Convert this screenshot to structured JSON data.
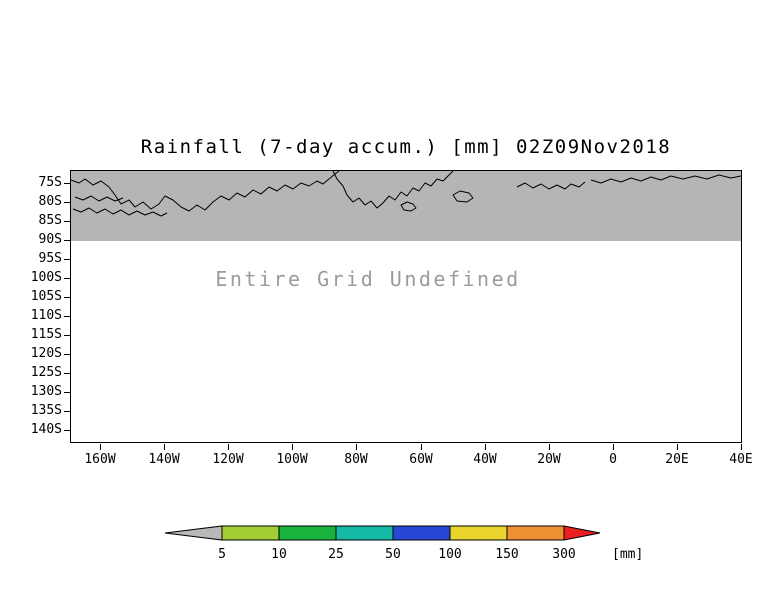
{
  "title": "Rainfall (7-day accum.) [mm] 02Z09Nov2018",
  "plot": {
    "message": "Entire Grid Undefined",
    "y_ticks": [
      "75S",
      "80S",
      "85S",
      "90S",
      "95S",
      "100S",
      "105S",
      "110S",
      "115S",
      "120S",
      "125S",
      "130S",
      "135S",
      "140S"
    ],
    "x_ticks": [
      "160W",
      "140W",
      "120W",
      "100W",
      "80W",
      "60W",
      "40W",
      "20W",
      "0",
      "20E",
      "40E"
    ]
  },
  "colorbar": {
    "labels": [
      "5",
      "10",
      "25",
      "50",
      "100",
      "150",
      "300"
    ],
    "unit": "[mm]",
    "colors": [
      "#b8b8b8",
      "#a3cc35",
      "#18b33c",
      "#16b8a6",
      "#2748d4",
      "#ead52e",
      "#ee8f33",
      "#eb1f1f"
    ]
  },
  "colors": {
    "background": "#ffffff",
    "shaded_region": "#b5b5b5",
    "undefined_text": "#9b9b9b",
    "coastline": "#000000",
    "axis": "#000000"
  },
  "chart_data": {
    "type": "heatmap",
    "title": "Rainfall (7-day accum.) [mm] 02Z09Nov2018",
    "status": "Entire Grid Undefined",
    "x_ticks": [
      "160W",
      "140W",
      "120W",
      "100W",
      "80W",
      "60W",
      "40W",
      "20W",
      "0",
      "20E",
      "40E"
    ],
    "y_ticks": [
      "75S",
      "80S",
      "85S",
      "90S",
      "95S",
      "100S",
      "105S",
      "110S",
      "115S",
      "120S",
      "125S",
      "130S",
      "135S",
      "140S"
    ],
    "values": [],
    "colorbar_levels": [
      5,
      10,
      25,
      50,
      100,
      150,
      300
    ],
    "colorbar_colors": [
      "#b8b8b8",
      "#a3cc35",
      "#18b33c",
      "#16b8a6",
      "#2748d4",
      "#ead52e",
      "#ee8f33",
      "#eb1f1f"
    ],
    "unit": "mm",
    "legend_position": "bottom",
    "grid": false,
    "notes": "Gray shaded band with black coastline contours covers latitudes from plot top to the 90S line; no rainfall values are plotted because the entire grid is undefined."
  }
}
